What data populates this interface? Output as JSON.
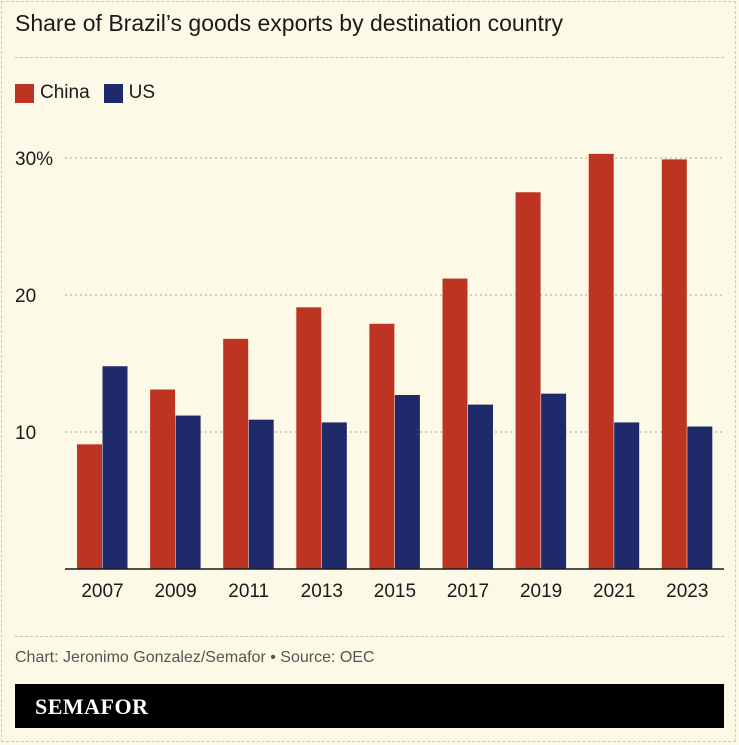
{
  "chart_data": {
    "type": "bar",
    "title": "Share of Brazil’s goods exports by destination country",
    "categories": [
      "2007",
      "2009",
      "2011",
      "2013",
      "2015",
      "2017",
      "2019",
      "2021",
      "2023"
    ],
    "series": [
      {
        "name": "China",
        "color": "#bd3522",
        "values": [
          9.1,
          13.1,
          16.8,
          19.1,
          17.9,
          21.2,
          27.5,
          30.3,
          29.9
        ]
      },
      {
        "name": "US",
        "color": "#1f2a6b",
        "values": [
          14.8,
          11.2,
          10.9,
          10.7,
          12.7,
          12.0,
          12.8,
          10.7,
          10.4
        ]
      }
    ],
    "ylim": [
      0,
      30
    ],
    "yticks": [
      {
        "value": 10,
        "label": "10"
      },
      {
        "value": 20,
        "label": "20"
      },
      {
        "value": 30,
        "label": "30%"
      }
    ],
    "grid": true,
    "legend": "top-left"
  },
  "source": "Chart: Jeronimo Gonzalez/Semafor • Source: OEC",
  "brand": "SEMAFOR"
}
